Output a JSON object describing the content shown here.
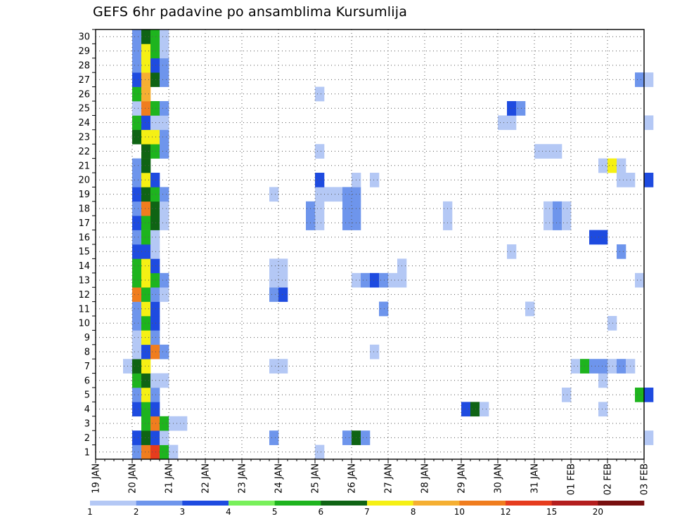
{
  "chart_data": {
    "type": "heatmap",
    "title": "GEFS 6hr padavine po ansamblima Kursumlija",
    "xlabel": "",
    "ylabel": "",
    "x_tick_labels": [
      "19 JAN",
      "20 JAN",
      "21 JAN",
      "22 JAN",
      "23 JAN",
      "24 JAN",
      "25 JAN",
      "26 JAN",
      "27 JAN",
      "28 JAN",
      "29 JAN",
      "30 JAN",
      "31 JAN",
      "01 FEB",
      "02 FEB",
      "03 FEB"
    ],
    "y_tick_labels": [
      "1",
      "2",
      "3",
      "4",
      "5",
      "6",
      "7",
      "8",
      "9",
      "10",
      "11",
      "12",
      "13",
      "14",
      "15",
      "16",
      "17",
      "18",
      "19",
      "20",
      "21",
      "22",
      "23",
      "24",
      "25",
      "26",
      "27",
      "28",
      "29",
      "30"
    ],
    "x_unit": "6-hour step (4 per day)",
    "members": 30,
    "grid": true,
    "legend_placement": "bottom",
    "legend": {
      "thresholds": [
        "1",
        "2",
        "3",
        "4",
        "5",
        "6",
        "7",
        "8",
        "10",
        "12",
        "15",
        "20"
      ],
      "colors": [
        "#b4c8f5",
        "#6e95ec",
        "#1e4be0",
        "#78f05a",
        "#1eb41e",
        "#0f6414",
        "#f5f014",
        "#f5af32",
        "#f07d1e",
        "#e63c1e",
        "#b41e1e",
        "#780f0f"
      ]
    },
    "cells": [
      {
        "m": 1,
        "s": 4,
        "v": 2
      },
      {
        "m": 1,
        "s": 5,
        "v": 10
      },
      {
        "m": 1,
        "s": 6,
        "v": 12
      },
      {
        "m": 1,
        "s": 7,
        "v": 5
      },
      {
        "m": 1,
        "s": 8,
        "v": 1
      },
      {
        "m": 1,
        "s": 24,
        "v": 1
      },
      {
        "m": 2,
        "s": 4,
        "v": 3
      },
      {
        "m": 2,
        "s": 5,
        "v": 6
      },
      {
        "m": 2,
        "s": 6,
        "v": 3
      },
      {
        "m": 2,
        "s": 7,
        "v": 1
      },
      {
        "m": 2,
        "s": 19,
        "v": 2
      },
      {
        "m": 2,
        "s": 27,
        "v": 2
      },
      {
        "m": 2,
        "s": 28,
        "v": 6
      },
      {
        "m": 2,
        "s": 29,
        "v": 2
      },
      {
        "m": 2,
        "s": 60,
        "v": 1
      },
      {
        "m": 3,
        "s": 5,
        "v": 5
      },
      {
        "m": 3,
        "s": 6,
        "v": 10
      },
      {
        "m": 3,
        "s": 7,
        "v": 5
      },
      {
        "m": 3,
        "s": 8,
        "v": 1
      },
      {
        "m": 3,
        "s": 9,
        "v": 1
      },
      {
        "m": 4,
        "s": 4,
        "v": 3
      },
      {
        "m": 4,
        "s": 5,
        "v": 5
      },
      {
        "m": 4,
        "s": 6,
        "v": 3
      },
      {
        "m": 4,
        "s": 40,
        "v": 3
      },
      {
        "m": 4,
        "s": 41,
        "v": 6
      },
      {
        "m": 4,
        "s": 42,
        "v": 1
      },
      {
        "m": 4,
        "s": 55,
        "v": 1
      },
      {
        "m": 5,
        "s": 4,
        "v": 2
      },
      {
        "m": 5,
        "s": 5,
        "v": 7
      },
      {
        "m": 5,
        "s": 6,
        "v": 2
      },
      {
        "m": 5,
        "s": 51,
        "v": 1
      },
      {
        "m": 5,
        "s": 59,
        "v": 5
      },
      {
        "m": 5,
        "s": 60,
        "v": 3
      },
      {
        "m": 6,
        "s": 4,
        "v": 5
      },
      {
        "m": 6,
        "s": 5,
        "v": 6
      },
      {
        "m": 6,
        "s": 6,
        "v": 1
      },
      {
        "m": 6,
        "s": 7,
        "v": 1
      },
      {
        "m": 6,
        "s": 55,
        "v": 1
      },
      {
        "m": 7,
        "s": 3,
        "v": 1
      },
      {
        "m": 7,
        "s": 4,
        "v": 6
      },
      {
        "m": 7,
        "s": 5,
        "v": 7
      },
      {
        "m": 7,
        "s": 19,
        "v": 1
      },
      {
        "m": 7,
        "s": 20,
        "v": 1
      },
      {
        "m": 7,
        "s": 52,
        "v": 1
      },
      {
        "m": 7,
        "s": 53,
        "v": 5
      },
      {
        "m": 7,
        "s": 54,
        "v": 2
      },
      {
        "m": 7,
        "s": 55,
        "v": 2
      },
      {
        "m": 7,
        "s": 56,
        "v": 1
      },
      {
        "m": 7,
        "s": 57,
        "v": 2
      },
      {
        "m": 7,
        "s": 58,
        "v": 1
      },
      {
        "m": 8,
        "s": 4,
        "v": 1
      },
      {
        "m": 8,
        "s": 5,
        "v": 3
      },
      {
        "m": 8,
        "s": 6,
        "v": 10
      },
      {
        "m": 8,
        "s": 7,
        "v": 2
      },
      {
        "m": 8,
        "s": 30,
        "v": 1
      },
      {
        "m": 9,
        "s": 4,
        "v": 1
      },
      {
        "m": 9,
        "s": 5,
        "v": 7
      },
      {
        "m": 9,
        "s": 6,
        "v": 2
      },
      {
        "m": 10,
        "s": 4,
        "v": 2
      },
      {
        "m": 10,
        "s": 5,
        "v": 5
      },
      {
        "m": 10,
        "s": 6,
        "v": 3
      },
      {
        "m": 10,
        "s": 56,
        "v": 1
      },
      {
        "m": 11,
        "s": 4,
        "v": 2
      },
      {
        "m": 11,
        "s": 5,
        "v": 7
      },
      {
        "m": 11,
        "s": 6,
        "v": 3
      },
      {
        "m": 11,
        "s": 31,
        "v": 2
      },
      {
        "m": 11,
        "s": 47,
        "v": 1
      },
      {
        "m": 12,
        "s": 4,
        "v": 10
      },
      {
        "m": 12,
        "s": 5,
        "v": 5
      },
      {
        "m": 12,
        "s": 6,
        "v": 2
      },
      {
        "m": 12,
        "s": 7,
        "v": 1
      },
      {
        "m": 12,
        "s": 19,
        "v": 2
      },
      {
        "m": 12,
        "s": 20,
        "v": 3
      },
      {
        "m": 13,
        "s": 4,
        "v": 5
      },
      {
        "m": 13,
        "s": 5,
        "v": 7
      },
      {
        "m": 13,
        "s": 6,
        "v": 5
      },
      {
        "m": 13,
        "s": 7,
        "v": 2
      },
      {
        "m": 13,
        "s": 19,
        "v": 1
      },
      {
        "m": 13,
        "s": 20,
        "v": 1
      },
      {
        "m": 13,
        "s": 28,
        "v": 1
      },
      {
        "m": 13,
        "s": 29,
        "v": 2
      },
      {
        "m": 13,
        "s": 30,
        "v": 3
      },
      {
        "m": 13,
        "s": 31,
        "v": 2
      },
      {
        "m": 13,
        "s": 32,
        "v": 1
      },
      {
        "m": 13,
        "s": 33,
        "v": 1
      },
      {
        "m": 13,
        "s": 59,
        "v": 1
      },
      {
        "m": 14,
        "s": 4,
        "v": 5
      },
      {
        "m": 14,
        "s": 5,
        "v": 7
      },
      {
        "m": 14,
        "s": 6,
        "v": 3
      },
      {
        "m": 14,
        "s": 19,
        "v": 1
      },
      {
        "m": 14,
        "s": 20,
        "v": 1
      },
      {
        "m": 14,
        "s": 33,
        "v": 1
      },
      {
        "m": 15,
        "s": 4,
        "v": 3
      },
      {
        "m": 15,
        "s": 5,
        "v": 3
      },
      {
        "m": 15,
        "s": 6,
        "v": 1
      },
      {
        "m": 15,
        "s": 45,
        "v": 1
      },
      {
        "m": 15,
        "s": 57,
        "v": 2
      },
      {
        "m": 16,
        "s": 4,
        "v": 2
      },
      {
        "m": 16,
        "s": 5,
        "v": 5
      },
      {
        "m": 16,
        "s": 6,
        "v": 1
      },
      {
        "m": 16,
        "s": 54,
        "v": 3
      },
      {
        "m": 16,
        "s": 55,
        "v": 3
      },
      {
        "m": 17,
        "s": 4,
        "v": 3
      },
      {
        "m": 17,
        "s": 5,
        "v": 5
      },
      {
        "m": 17,
        "s": 6,
        "v": 6
      },
      {
        "m": 17,
        "s": 7,
        "v": 1
      },
      {
        "m": 17,
        "s": 24,
        "v": 1
      },
      {
        "m": 17,
        "s": 23,
        "v": 2
      },
      {
        "m": 17,
        "s": 27,
        "v": 2
      },
      {
        "m": 17,
        "s": 28,
        "v": 2
      },
      {
        "m": 17,
        "s": 38,
        "v": 1
      },
      {
        "m": 17,
        "s": 49,
        "v": 1
      },
      {
        "m": 17,
        "s": 50,
        "v": 2
      },
      {
        "m": 17,
        "s": 51,
        "v": 1
      },
      {
        "m": 18,
        "s": 4,
        "v": 2
      },
      {
        "m": 18,
        "s": 5,
        "v": 10
      },
      {
        "m": 18,
        "s": 6,
        "v": 6
      },
      {
        "m": 18,
        "s": 7,
        "v": 1
      },
      {
        "m": 18,
        "s": 23,
        "v": 2
      },
      {
        "m": 18,
        "s": 24,
        "v": 1
      },
      {
        "m": 18,
        "s": 27,
        "v": 2
      },
      {
        "m": 18,
        "s": 28,
        "v": 2
      },
      {
        "m": 18,
        "s": 38,
        "v": 1
      },
      {
        "m": 18,
        "s": 49,
        "v": 1
      },
      {
        "m": 18,
        "s": 50,
        "v": 2
      },
      {
        "m": 18,
        "s": 51,
        "v": 1
      },
      {
        "m": 19,
        "s": 4,
        "v": 3
      },
      {
        "m": 19,
        "s": 5,
        "v": 6
      },
      {
        "m": 19,
        "s": 6,
        "v": 5
      },
      {
        "m": 19,
        "s": 7,
        "v": 2
      },
      {
        "m": 19,
        "s": 19,
        "v": 1
      },
      {
        "m": 19,
        "s": 24,
        "v": 1
      },
      {
        "m": 19,
        "s": 25,
        "v": 1
      },
      {
        "m": 19,
        "s": 26,
        "v": 1
      },
      {
        "m": 19,
        "s": 27,
        "v": 2
      },
      {
        "m": 19,
        "s": 28,
        "v": 2
      },
      {
        "m": 20,
        "s": 4,
        "v": 2
      },
      {
        "m": 20,
        "s": 5,
        "v": 7
      },
      {
        "m": 20,
        "s": 6,
        "v": 3
      },
      {
        "m": 20,
        "s": 24,
        "v": 3
      },
      {
        "m": 20,
        "s": 28,
        "v": 1
      },
      {
        "m": 20,
        "s": 30,
        "v": 1
      },
      {
        "m": 20,
        "s": 57,
        "v": 1
      },
      {
        "m": 20,
        "s": 58,
        "v": 1
      },
      {
        "m": 20,
        "s": 60,
        "v": 3
      },
      {
        "m": 21,
        "s": 4,
        "v": 2
      },
      {
        "m": 21,
        "s": 5,
        "v": 6
      },
      {
        "m": 21,
        "s": 55,
        "v": 1
      },
      {
        "m": 21,
        "s": 56,
        "v": 7
      },
      {
        "m": 21,
        "s": 57,
        "v": 1
      },
      {
        "m": 22,
        "s": 5,
        "v": 6
      },
      {
        "m": 22,
        "s": 6,
        "v": 5
      },
      {
        "m": 22,
        "s": 7,
        "v": 2
      },
      {
        "m": 22,
        "s": 24,
        "v": 1
      },
      {
        "m": 22,
        "s": 48,
        "v": 1
      },
      {
        "m": 22,
        "s": 49,
        "v": 1
      },
      {
        "m": 22,
        "s": 50,
        "v": 1
      },
      {
        "m": 23,
        "s": 4,
        "v": 6
      },
      {
        "m": 23,
        "s": 5,
        "v": 7
      },
      {
        "m": 23,
        "s": 6,
        "v": 7
      },
      {
        "m": 23,
        "s": 7,
        "v": 2
      },
      {
        "m": 24,
        "s": 4,
        "v": 5
      },
      {
        "m": 24,
        "s": 5,
        "v": 3
      },
      {
        "m": 24,
        "s": 6,
        "v": 1
      },
      {
        "m": 24,
        "s": 7,
        "v": 1
      },
      {
        "m": 24,
        "s": 44,
        "v": 1
      },
      {
        "m": 24,
        "s": 45,
        "v": 1
      },
      {
        "m": 24,
        "s": 60,
        "v": 1
      },
      {
        "m": 25,
        "s": 4,
        "v": 1
      },
      {
        "m": 25,
        "s": 5,
        "v": 10
      },
      {
        "m": 25,
        "s": 6,
        "v": 5
      },
      {
        "m": 25,
        "s": 7,
        "v": 2
      },
      {
        "m": 25,
        "s": 45,
        "v": 3
      },
      {
        "m": 25,
        "s": 46,
        "v": 2
      },
      {
        "m": 26,
        "s": 4,
        "v": 5
      },
      {
        "m": 26,
        "s": 5,
        "v": 8
      },
      {
        "m": 26,
        "s": 24,
        "v": 1
      },
      {
        "m": 27,
        "s": 4,
        "v": 3
      },
      {
        "m": 27,
        "s": 5,
        "v": 8
      },
      {
        "m": 27,
        "s": 6,
        "v": 6
      },
      {
        "m": 27,
        "s": 7,
        "v": 2
      },
      {
        "m": 27,
        "s": 59,
        "v": 2
      },
      {
        "m": 27,
        "s": 60,
        "v": 1
      },
      {
        "m": 28,
        "s": 4,
        "v": 2
      },
      {
        "m": 28,
        "s": 5,
        "v": 7
      },
      {
        "m": 28,
        "s": 6,
        "v": 3
      },
      {
        "m": 28,
        "s": 7,
        "v": 2
      },
      {
        "m": 29,
        "s": 4,
        "v": 2
      },
      {
        "m": 29,
        "s": 5,
        "v": 7
      },
      {
        "m": 29,
        "s": 6,
        "v": 5
      },
      {
        "m": 29,
        "s": 7,
        "v": 1
      },
      {
        "m": 30,
        "s": 4,
        "v": 2
      },
      {
        "m": 30,
        "s": 5,
        "v": 6
      },
      {
        "m": 30,
        "s": 6,
        "v": 5
      },
      {
        "m": 30,
        "s": 7,
        "v": 1
      }
    ]
  }
}
